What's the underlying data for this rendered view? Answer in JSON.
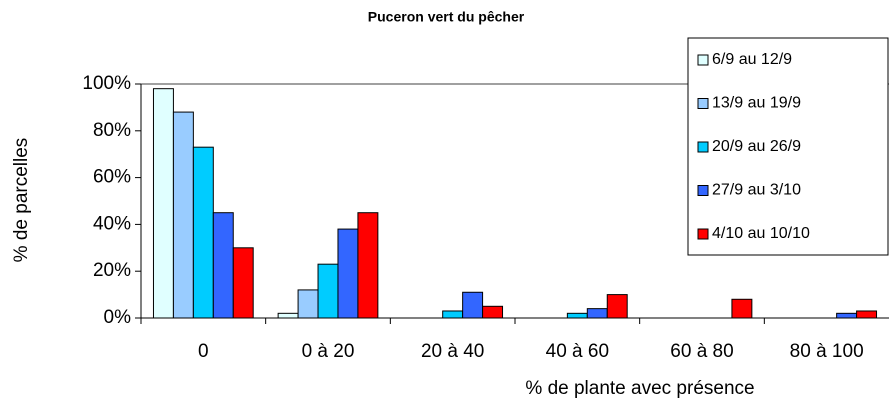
{
  "chart_data": {
    "type": "bar",
    "title": "Puceron vert du pêcher",
    "x_label": "% de plante avec présence",
    "y_label": "% de parcelles",
    "categories": [
      "0",
      "0 à 20",
      "20 à 40",
      "40 à 60",
      "60 à 80",
      "80 à 100"
    ],
    "series": [
      {
        "name": "6/9 au 12/9",
        "color": "#e0ffff",
        "values": [
          98,
          2,
          0,
          0,
          0,
          0
        ]
      },
      {
        "name": "13/9 au 19/9",
        "color": "#99ccff",
        "values": [
          88,
          12,
          0,
          0,
          0,
          0
        ]
      },
      {
        "name": "20/9 au 26/9",
        "color": "#00ccff",
        "values": [
          73,
          23,
          3,
          2,
          0,
          0
        ]
      },
      {
        "name": "27/9 au 3/10",
        "color": "#3366ff",
        "values": [
          45,
          38,
          11,
          4,
          0,
          2
        ]
      },
      {
        "name": "4/10 au 10/10",
        "color": "#ff0000",
        "values": [
          30,
          45,
          5,
          10,
          8,
          3
        ]
      }
    ],
    "ylim": [
      0,
      100
    ],
    "yticks": [
      {
        "value": 0,
        "label": "0%"
      },
      {
        "value": 20,
        "label": "20%"
      },
      {
        "value": 40,
        "label": "40%"
      },
      {
        "value": 60,
        "label": "60%"
      },
      {
        "value": 80,
        "label": "80%"
      },
      {
        "value": 100,
        "label": "100%"
      }
    ],
    "legend": "upper right"
  }
}
